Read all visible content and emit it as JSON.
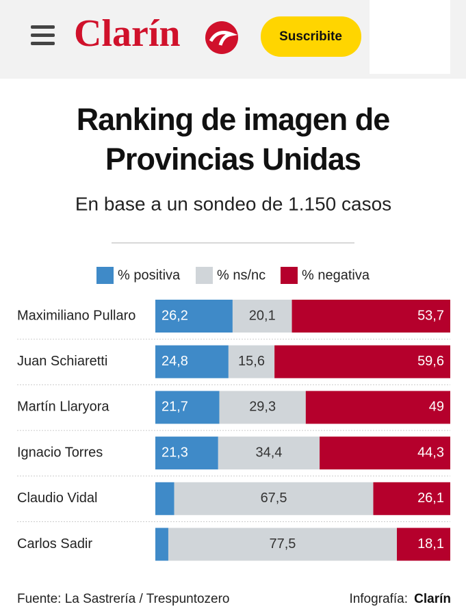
{
  "header": {
    "logo": "Clarín",
    "button": "Suscribite"
  },
  "chart_data": {
    "type": "stacked-bar-horizontal",
    "title": "Ranking de imagen de Provincias Unidas",
    "subtitle": "En base a un sondeo de 1.150 casos",
    "categories": [
      "Maximiliano Pullaro",
      "Juan Schiaretti",
      "Martín Llaryora",
      "Ignacio Torres",
      "Claudio Vidal",
      "Carlos Sadir"
    ],
    "xlim": [
      0,
      100
    ],
    "series": [
      {
        "name": "% positiva",
        "color": "#3f8ac8",
        "values": [
          26.2,
          24.8,
          21.7,
          21.3,
          6.4,
          4.4
        ],
        "value_labels": [
          "26,2",
          "24,8",
          "21,7",
          "21,3",
          null,
          null
        ]
      },
      {
        "name": "% ns/nc",
        "color": "#d0d5d9",
        "values": [
          20.1,
          15.6,
          29.3,
          34.4,
          67.5,
          77.5
        ],
        "value_labels": [
          "20,1",
          "15,6",
          "29,3",
          "34,4",
          "67,5",
          "77,5"
        ]
      },
      {
        "name": "% negativa",
        "color": "#b5002c",
        "values": [
          53.7,
          59.6,
          49,
          44.3,
          26.1,
          18.1
        ],
        "value_labels": [
          "53,7",
          "59,6",
          "49",
          "44,3",
          "26,1",
          "18,1"
        ]
      }
    ]
  },
  "footer": {
    "source": "Fuente: La Sastrería / Trespuntozero",
    "credit_label": "Infografía:",
    "credit_name": "Clarín"
  }
}
